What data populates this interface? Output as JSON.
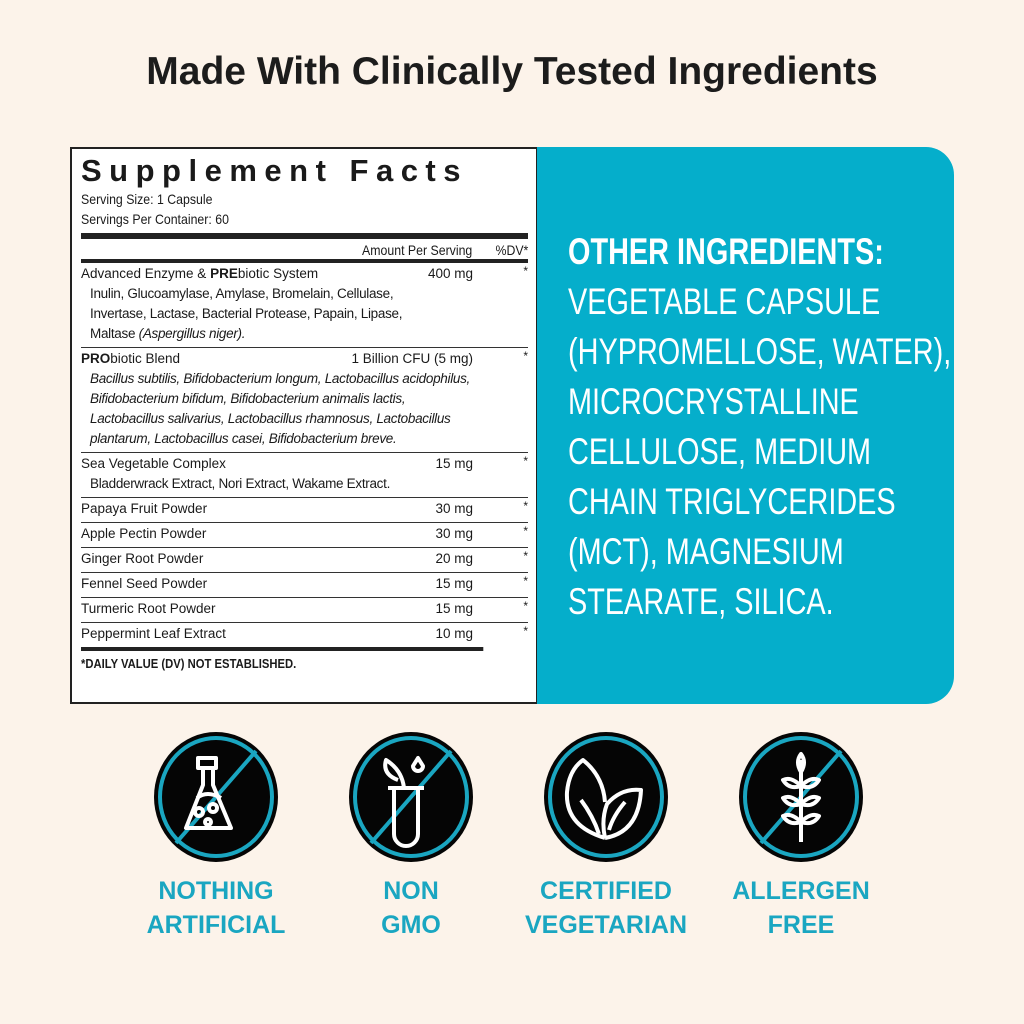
{
  "title": "Made With Clinically Tested Ingredients",
  "supplement_facts": {
    "heading": "Supplement Facts",
    "serving_size": "Serving Size: 1 Capsule",
    "servings_per_container": "Servings Per Container: 60",
    "col_amount": "Amount Per Serving",
    "col_dv": "%DV*",
    "rows": [
      {
        "name_bold": "",
        "name_pre": "Advanced Enzyme & ",
        "name_strong": "PRE",
        "name_post": "biotic System",
        "amount": "400 mg",
        "dv": "*",
        "sub": [
          "Inulin, Glucoamylase, Amylase, Bromelain, Cellulase,",
          "Invertase, Lactase, Bacterial Protease, Papain, Lipase,"
        ],
        "sub_last": "Maltase ",
        "sub_last_italic": "(Aspergillus niger)."
      },
      {
        "name_strong": "PRO",
        "name_post": "biotic Blend",
        "amount": "1 Billion CFU (5 mg)",
        "dv": "*",
        "sub": [
          "Bacillus subtilis, Bifidobacterium longum, Lactobacillus acidophilus,",
          "Bifidobacterium bifidum, Bifidobacterium animalis lactis,",
          "Lactobacillus salivarius, Lactobacillus rhamnosus, Lactobacillus",
          "plantarum, Lactobacillus casei, Bifidobacterium breve."
        ]
      },
      {
        "name": "Sea Vegetable Complex",
        "amount": "15 mg",
        "dv": "*",
        "sub": [
          "Bladderwrack Extract, Nori Extract, Wakame Extract."
        ]
      },
      {
        "name": "Papaya Fruit Powder",
        "amount": "30 mg",
        "dv": "*"
      },
      {
        "name": "Apple Pectin Powder",
        "amount": "30 mg",
        "dv": "*"
      },
      {
        "name": "Ginger Root Powder",
        "amount": "20 mg",
        "dv": "*"
      },
      {
        "name": "Fennel Seed Powder",
        "amount": "15 mg",
        "dv": "*"
      },
      {
        "name": "Turmeric Root Powder",
        "amount": "15 mg",
        "dv": "*"
      },
      {
        "name": "Peppermint Leaf Extract",
        "amount": "10 mg",
        "dv": "*"
      }
    ],
    "footnote": "*DAILY VALUE (DV) NOT ESTABLISHED."
  },
  "other_ingredients": {
    "heading": "OTHER INGREDIENTS:",
    "lines": [
      "VEGETABLE CAPSULE",
      "(HYPROMELLOSE, WATER),",
      "MICROCRYSTALLINE",
      "CELLULOSE, MEDIUM",
      "CHAIN TRIGLYCERIDES",
      "(MCT), MAGNESIUM",
      "STEARATE, SILICA."
    ]
  },
  "badges": [
    {
      "icon": "no-flask-icon",
      "line1": "NOTHING",
      "line2": "ARTIFICIAL"
    },
    {
      "icon": "no-gmo-test-tube-icon",
      "line1": "NON",
      "line2": "GMO"
    },
    {
      "icon": "leaf-icon",
      "line1": "CERTIFIED",
      "line2": "VEGETARIAN"
    },
    {
      "icon": "no-wheat-icon",
      "line1": "ALLERGEN",
      "line2": "FREE"
    }
  ],
  "colors": {
    "background": "#fcf3ea",
    "teal": "#05aecb",
    "badge_text": "#1aa6c1",
    "badge_fill": "#050505"
  }
}
